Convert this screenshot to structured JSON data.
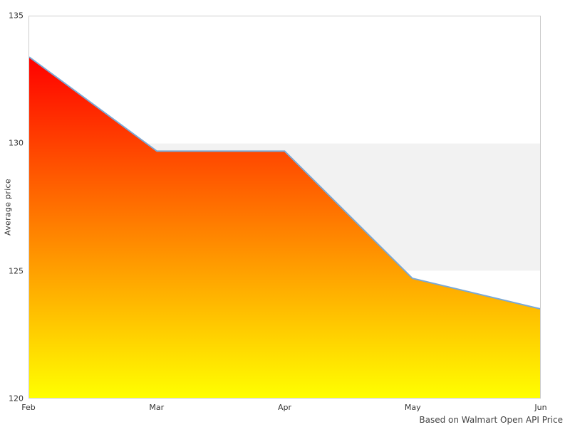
{
  "chart_data": {
    "type": "area",
    "x": [
      "Feb",
      "Mar",
      "Apr",
      "May",
      "Jun"
    ],
    "values": [
      133.4,
      129.7,
      129.7,
      124.7,
      123.5
    ],
    "title": "",
    "xlabel": "",
    "ylabel": "Average price",
    "ylim": [
      120,
      135
    ],
    "yticks": [
      120,
      125,
      130,
      135
    ],
    "grid": "off",
    "legend": "none",
    "plot_bands": [
      {
        "from": 125,
        "to": 130,
        "color": "#f2f2f2"
      }
    ],
    "colors": {
      "line": "#7aa9d6",
      "area_gradient_top": "#ff0000",
      "area_gradient_bottom": "#ffff00",
      "plot_border": "#cccccc",
      "tick_text": "#333333",
      "caption_text": "#444444"
    },
    "caption": "Based on Walmart Open API Price"
  }
}
